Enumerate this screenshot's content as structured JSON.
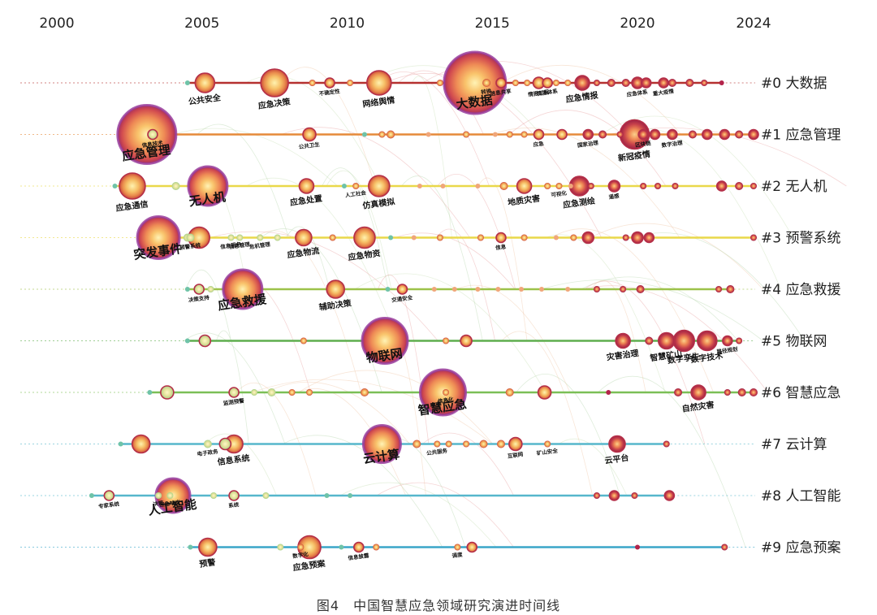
{
  "caption": "图4　中国智慧应急领域研究演进时间线",
  "chart_data": {
    "type": "timeline",
    "title": "中国智慧应急领域研究演进时间线",
    "years": [
      2000,
      2005,
      2010,
      2015,
      2020,
      2024
    ],
    "x_range": [
      2000,
      2024
    ],
    "colors": {
      "c0": "#b5302f",
      "c1": "#e58a3a",
      "c2": "#e9d84a",
      "c3": "#e9d84a",
      "c4": "#9cc24a",
      "c5": "#5fae4e",
      "c6": "#7bbf56",
      "c7": "#56b7cc",
      "c8": "#56b7cc",
      "c9": "#3aa6c9",
      "early": "#6fc3a8",
      "mid": "#f5c36a",
      "late": "#b3244a"
    },
    "clusters": [
      {
        "label": "#0 大数据",
        "nodes": [
          {
            "year": 2004.5,
            "size": 3
          },
          {
            "year": 2005.1,
            "size": 12,
            "text": "公共安全"
          },
          {
            "year": 2007.5,
            "size": 17,
            "text": "应急决策"
          },
          {
            "year": 2008.8,
            "size": 4
          },
          {
            "year": 2009.4,
            "size": 6,
            "text": "不确定性"
          },
          {
            "year": 2010.1,
            "size": 4
          },
          {
            "year": 2011.1,
            "size": 15,
            "text": "网络舆情"
          },
          {
            "year": 2013.2,
            "size": 4
          },
          {
            "year": 2014.4,
            "size": 38,
            "text": "大数据"
          },
          {
            "year": 2014.8,
            "size": 5,
            "text": "转换"
          },
          {
            "year": 2015.3,
            "size": 6,
            "text": "信息共享"
          },
          {
            "year": 2015.8,
            "size": 4
          },
          {
            "year": 2016.2,
            "size": 4
          },
          {
            "year": 2016.6,
            "size": 7,
            "text": "情报工程"
          },
          {
            "year": 2016.9,
            "size": 6,
            "text": "情报体系"
          },
          {
            "year": 2017.2,
            "size": 4
          },
          {
            "year": 2017.6,
            "size": 4
          },
          {
            "year": 2018.1,
            "size": 9,
            "text": "应急情报"
          },
          {
            "year": 2018.6,
            "size": 4
          },
          {
            "year": 2019.1,
            "size": 5
          },
          {
            "year": 2019.6,
            "size": 5
          },
          {
            "year": 2020.0,
            "size": 7,
            "text": "应急体系"
          },
          {
            "year": 2020.3,
            "size": 6
          },
          {
            "year": 2020.9,
            "size": 6,
            "text": "重大疫情"
          },
          {
            "year": 2021.2,
            "size": 5
          },
          {
            "year": 2021.8,
            "size": 5
          },
          {
            "year": 2022.3,
            "size": 4
          },
          {
            "year": 2022.9,
            "size": 3
          }
        ]
      },
      {
        "label": "#1 应急管理",
        "nodes": [
          {
            "year": 2003.1,
            "size": 36,
            "text": "应急管理"
          },
          {
            "year": 2003.3,
            "size": 6,
            "text": "信息技术"
          },
          {
            "year": 2008.7,
            "size": 8,
            "text": "公共卫生"
          },
          {
            "year": 2010.6,
            "size": 3
          },
          {
            "year": 2011.2,
            "size": 4
          },
          {
            "year": 2011.5,
            "size": 5
          },
          {
            "year": 2012.8,
            "size": 3
          },
          {
            "year": 2014.1,
            "size": 4
          },
          {
            "year": 2015.1,
            "size": 3
          },
          {
            "year": 2015.6,
            "size": 4
          },
          {
            "year": 2016.1,
            "size": 4
          },
          {
            "year": 2016.6,
            "size": 6,
            "text": "应急"
          },
          {
            "year": 2017.4,
            "size": 6
          },
          {
            "year": 2018.3,
            "size": 6,
            "text": "国家治理"
          },
          {
            "year": 2018.8,
            "size": 5
          },
          {
            "year": 2019.4,
            "size": 4
          },
          {
            "year": 2019.9,
            "size": 18,
            "text": "新冠疫情"
          },
          {
            "year": 2020.2,
            "size": 6,
            "text": "区块链"
          },
          {
            "year": 2020.6,
            "size": 6
          },
          {
            "year": 2021.2,
            "size": 6,
            "text": "数字治理"
          },
          {
            "year": 2021.9,
            "size": 5
          },
          {
            "year": 2022.4,
            "size": 6
          },
          {
            "year": 2023.0,
            "size": 6
          },
          {
            "year": 2023.5,
            "size": 5
          },
          {
            "year": 2024.0,
            "size": 6
          }
        ]
      },
      {
        "label": "#2 无人机",
        "nodes": [
          {
            "year": 2002.0,
            "size": 3
          },
          {
            "year": 2002.6,
            "size": 16,
            "text": "应急通信"
          },
          {
            "year": 2004.1,
            "size": 5
          },
          {
            "year": 2005.2,
            "size": 24,
            "text": "无人机"
          },
          {
            "year": 2008.6,
            "size": 9,
            "text": "应急处置"
          },
          {
            "year": 2009.9,
            "size": 3
          },
          {
            "year": 2010.3,
            "size": 4,
            "text": "人工社会"
          },
          {
            "year": 2011.1,
            "size": 13,
            "text": "仿真模拟"
          },
          {
            "year": 2012.5,
            "size": 3
          },
          {
            "year": 2013.3,
            "size": 3
          },
          {
            "year": 2014.5,
            "size": 3
          },
          {
            "year": 2015.4,
            "size": 5
          },
          {
            "year": 2016.1,
            "size": 9,
            "text": "地质灾害"
          },
          {
            "year": 2016.9,
            "size": 4
          },
          {
            "year": 2017.3,
            "size": 4,
            "text": "可视化"
          },
          {
            "year": 2017.7,
            "size": 3
          },
          {
            "year": 2018.0,
            "size": 12,
            "text": "应急测绘"
          },
          {
            "year": 2018.4,
            "size": 4
          },
          {
            "year": 2019.2,
            "size": 7,
            "text": "遥感"
          },
          {
            "year": 2020.2,
            "size": 4
          },
          {
            "year": 2020.7,
            "size": 4
          },
          {
            "year": 2021.3,
            "size": 4
          },
          {
            "year": 2022.9,
            "size": 6
          },
          {
            "year": 2023.5,
            "size": 5
          },
          {
            "year": 2024.0,
            "size": 4
          }
        ]
      },
      {
        "label": "#3 预警系统",
        "nodes": [
          {
            "year": 2003.5,
            "size": 26,
            "text": "突发事件"
          },
          {
            "year": 2004.5,
            "size": 5
          },
          {
            "year": 2004.6,
            "size": 5,
            "text": "预警系统"
          },
          {
            "year": 2004.9,
            "size": 13
          },
          {
            "year": 2006.0,
            "size": 4,
            "text": "信息服务"
          },
          {
            "year": 2006.3,
            "size": 4,
            "text": "信息管理"
          },
          {
            "year": 2007.0,
            "size": 4,
            "text": "危机管理"
          },
          {
            "year": 2007.6,
            "size": 4
          },
          {
            "year": 2008.5,
            "size": 10,
            "text": "应急物流"
          },
          {
            "year": 2009.5,
            "size": 4
          },
          {
            "year": 2010.6,
            "size": 13,
            "text": "应急物资"
          },
          {
            "year": 2011.5,
            "size": 3
          },
          {
            "year": 2012.3,
            "size": 3
          },
          {
            "year": 2013.2,
            "size": 4
          },
          {
            "year": 2014.6,
            "size": 4
          },
          {
            "year": 2015.3,
            "size": 6,
            "text": "信息"
          },
          {
            "year": 2016.1,
            "size": 4
          },
          {
            "year": 2017.2,
            "size": 3
          },
          {
            "year": 2017.8,
            "size": 4
          },
          {
            "year": 2018.3,
            "size": 7
          },
          {
            "year": 2019.6,
            "size": 4
          },
          {
            "year": 2020.0,
            "size": 7
          },
          {
            "year": 2020.4,
            "size": 6
          },
          {
            "year": 2024.0,
            "size": 4
          }
        ]
      },
      {
        "label": "#4 应急救援",
        "nodes": [
          {
            "year": 2004.5,
            "size": 3
          },
          {
            "year": 2004.9,
            "size": 6,
            "text": "决策支持"
          },
          {
            "year": 2005.3,
            "size": 4
          },
          {
            "year": 2006.4,
            "size": 24,
            "text": "应急救援"
          },
          {
            "year": 2009.6,
            "size": 11,
            "text": "辅助决策"
          },
          {
            "year": 2011.4,
            "size": 3
          },
          {
            "year": 2011.9,
            "size": 6,
            "text": "交通安全"
          },
          {
            "year": 2013.0,
            "size": 3
          },
          {
            "year": 2013.7,
            "size": 3
          },
          {
            "year": 2014.5,
            "size": 3
          },
          {
            "year": 2015.2,
            "size": 3
          },
          {
            "year": 2016.0,
            "size": 3
          },
          {
            "year": 2016.7,
            "size": 3
          },
          {
            "year": 2017.6,
            "size": 3
          },
          {
            "year": 2018.6,
            "size": 4
          },
          {
            "year": 2019.5,
            "size": 4
          },
          {
            "year": 2020.1,
            "size": 5
          },
          {
            "year": 2022.8,
            "size": 4
          },
          {
            "year": 2023.2,
            "size": 5
          }
        ]
      },
      {
        "label": "#5 物联网",
        "nodes": [
          {
            "year": 2004.5,
            "size": 3
          },
          {
            "year": 2005.1,
            "size": 7
          },
          {
            "year": 2008.5,
            "size": 4
          },
          {
            "year": 2011.3,
            "size": 28,
            "text": "物联网"
          },
          {
            "year": 2013.4,
            "size": 4
          },
          {
            "year": 2014.1,
            "size": 7
          },
          {
            "year": 2019.5,
            "size": 9,
            "text": "灾害治理"
          },
          {
            "year": 2020.4,
            "size": 5
          },
          {
            "year": 2021.0,
            "size": 10,
            "text": "智慧矿山"
          },
          {
            "year": 2021.6,
            "size": 13,
            "text": "数字孪生"
          },
          {
            "year": 2022.4,
            "size": 12,
            "text": "数字技术"
          },
          {
            "year": 2023.1,
            "size": 6,
            "text": "路径规划"
          },
          {
            "year": 2023.5,
            "size": 4
          }
        ]
      },
      {
        "label": "#6 智慧应急",
        "nodes": [
          {
            "year": 2003.2,
            "size": 3
          },
          {
            "year": 2003.8,
            "size": 8
          },
          {
            "year": 2006.1,
            "size": 6,
            "text": "监测预警"
          },
          {
            "year": 2006.8,
            "size": 4
          },
          {
            "year": 2007.4,
            "size": 5
          },
          {
            "year": 2008.1,
            "size": 4
          },
          {
            "year": 2008.7,
            "size": 4
          },
          {
            "year": 2010.6,
            "size": 5
          },
          {
            "year": 2013.3,
            "size": 28,
            "text": "智慧应急"
          },
          {
            "year": 2013.4,
            "size": 4,
            "text": "信息化"
          },
          {
            "year": 2015.6,
            "size": 5
          },
          {
            "year": 2016.8,
            "size": 8
          },
          {
            "year": 2019.0,
            "size": 3
          },
          {
            "year": 2021.4,
            "size": 5
          },
          {
            "year": 2022.1,
            "size": 9,
            "text": "自然灾害"
          },
          {
            "year": 2023.1,
            "size": 4
          },
          {
            "year": 2023.6,
            "size": 5
          },
          {
            "year": 2024.0,
            "size": 5
          }
        ]
      },
      {
        "label": "#7 云计算",
        "nodes": [
          {
            "year": 2002.2,
            "size": 3
          },
          {
            "year": 2002.9,
            "size": 11
          },
          {
            "year": 2005.2,
            "size": 5,
            "text": "电子政务"
          },
          {
            "year": 2005.8,
            "size": 7
          },
          {
            "year": 2006.1,
            "size": 11,
            "text": "信息系统"
          },
          {
            "year": 2011.2,
            "size": 23,
            "text": "云计算"
          },
          {
            "year": 2012.4,
            "size": 5
          },
          {
            "year": 2013.1,
            "size": 4,
            "text": "公共服务"
          },
          {
            "year": 2013.5,
            "size": 4
          },
          {
            "year": 2014.1,
            "size": 4
          },
          {
            "year": 2014.7,
            "size": 5
          },
          {
            "year": 2015.3,
            "size": 5
          },
          {
            "year": 2015.8,
            "size": 8,
            "text": "互联网"
          },
          {
            "year": 2016.9,
            "size": 4,
            "text": "矿山安全"
          },
          {
            "year": 2019.3,
            "size": 10,
            "text": "云平台"
          },
          {
            "year": 2021.0,
            "size": 4
          }
        ]
      },
      {
        "label": "#8 人工智能",
        "nodes": [
          {
            "year": 2001.2,
            "size": 3
          },
          {
            "year": 2001.8,
            "size": 6,
            "text": "专家系统"
          },
          {
            "year": 2003.5,
            "size": 4,
            "text": "决策"
          },
          {
            "year": 2004.0,
            "size": 21,
            "text": "人工智能"
          },
          {
            "year": 2003.9,
            "size": 4,
            "text": "应急响应"
          },
          {
            "year": 2005.4,
            "size": 4
          },
          {
            "year": 2006.1,
            "size": 6,
            "text": "系统"
          },
          {
            "year": 2007.2,
            "size": 4
          },
          {
            "year": 2009.3,
            "size": 3
          },
          {
            "year": 2010.1,
            "size": 3
          },
          {
            "year": 2018.6,
            "size": 4
          },
          {
            "year": 2019.2,
            "size": 6
          },
          {
            "year": 2019.9,
            "size": 4
          },
          {
            "year": 2021.1,
            "size": 6
          }
        ]
      },
      {
        "label": "#9 应急预案",
        "nodes": [
          {
            "year": 2004.6,
            "size": 3
          },
          {
            "year": 2005.2,
            "size": 11,
            "text": "预警"
          },
          {
            "year": 2007.7,
            "size": 4
          },
          {
            "year": 2008.7,
            "size": 14,
            "text": "应急预案"
          },
          {
            "year": 2008.4,
            "size": 4,
            "text": "数字化"
          },
          {
            "year": 2009.8,
            "size": 3
          },
          {
            "year": 2010.4,
            "size": 6,
            "text": "信息披露"
          },
          {
            "year": 2011.0,
            "size": 4
          },
          {
            "year": 2013.8,
            "size": 4,
            "text": "调度"
          },
          {
            "year": 2014.3,
            "size": 6
          },
          {
            "year": 2020.0,
            "size": 3
          },
          {
            "year": 2023.0,
            "size": 4
          }
        ]
      }
    ]
  }
}
